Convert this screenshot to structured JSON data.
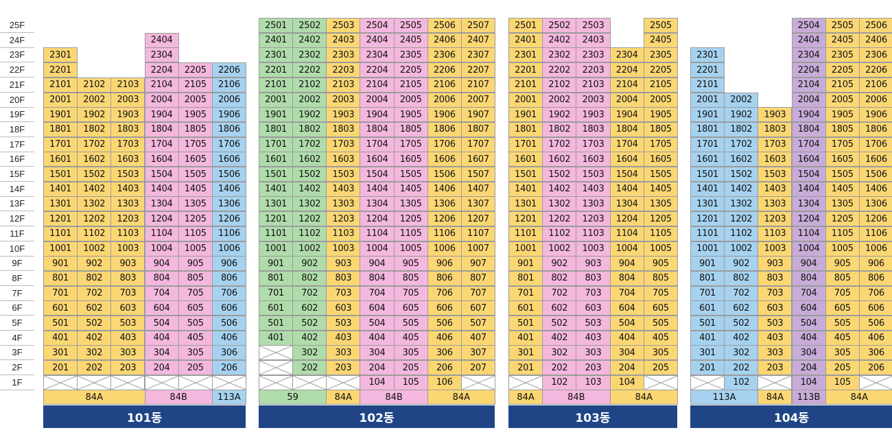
{
  "colors": {
    "84A": "#fbd774",
    "84B": "#f4b8de",
    "113A": "#a6d2ef",
    "59": "#b0dcab",
    "113B": "#c8acd8",
    "building_bar": "#1f4586"
  },
  "floors": [
    "25F",
    "24F",
    "23F",
    "22F",
    "21F",
    "20F",
    "19F",
    "18F",
    "17F",
    "16F",
    "15F",
    "14F",
    "13F",
    "12F",
    "11F",
    "10F",
    "9F",
    "8F",
    "7F",
    "6F",
    "5F",
    "4F",
    "3F",
    "2F",
    "1F"
  ],
  "buildings": [
    {
      "name": "101동",
      "columns": [
        {
          "col": 1,
          "type": "84A",
          "min": 2,
          "max": 23,
          "empty": [
            1
          ]
        },
        {
          "col": 2,
          "type": "84A",
          "min": 2,
          "max": 21,
          "empty": [
            1
          ]
        },
        {
          "col": 3,
          "type": "84A",
          "min": 2,
          "max": 21,
          "empty": [
            1
          ]
        },
        {
          "col": 4,
          "type": "84B",
          "min": 2,
          "max": 24,
          "empty": [
            1
          ]
        },
        {
          "col": 5,
          "type": "84B",
          "min": 2,
          "max": 22,
          "empty": [
            1
          ]
        },
        {
          "col": 6,
          "type": "113A",
          "min": 2,
          "max": 22,
          "empty": [
            1
          ]
        }
      ],
      "types": [
        {
          "label": "84A",
          "type": "84A",
          "span": 3
        },
        {
          "label": "84B",
          "type": "84B",
          "span": 2
        },
        {
          "label": "113A",
          "type": "113A",
          "span": 1
        }
      ]
    },
    {
      "name": "102동",
      "columns": [
        {
          "col": 1,
          "type": "59",
          "min": 4,
          "max": 25,
          "empty": [
            1,
            2,
            3
          ]
        },
        {
          "col": 2,
          "type": "59",
          "min": 2,
          "max": 25,
          "empty": [
            1
          ]
        },
        {
          "col": 3,
          "type": "84A",
          "min": 2,
          "max": 25,
          "empty": [
            1
          ]
        },
        {
          "col": 4,
          "type": "84B",
          "min": 1,
          "max": 25,
          "empty": []
        },
        {
          "col": 5,
          "type": "84B",
          "min": 1,
          "max": 25,
          "empty": []
        },
        {
          "col": 6,
          "type": "84A",
          "min": 1,
          "max": 25,
          "empty": []
        },
        {
          "col": 7,
          "type": "84A",
          "min": 2,
          "max": 25,
          "empty": [
            1
          ]
        }
      ],
      "types": [
        {
          "label": "59",
          "type": "59",
          "span": 2
        },
        {
          "label": "84A",
          "type": "84A",
          "span": 1
        },
        {
          "label": "84B",
          "type": "84B",
          "span": 2
        },
        {
          "label": "84A",
          "type": "84A",
          "span": 2
        }
      ]
    },
    {
      "name": "103동",
      "columns": [
        {
          "col": 1,
          "type": "84A",
          "min": 2,
          "max": 25,
          "empty": [
            1
          ]
        },
        {
          "col": 2,
          "type": "84B",
          "min": 1,
          "max": 25,
          "empty": []
        },
        {
          "col": 3,
          "type": "84B",
          "min": 1,
          "max": 25,
          "empty": []
        },
        {
          "col": 4,
          "type": "84A",
          "min": 1,
          "max": 23,
          "empty": []
        },
        {
          "col": 5,
          "type": "84A",
          "min": 2,
          "max": 25,
          "empty": [
            1
          ]
        }
      ],
      "types": [
        {
          "label": "84A",
          "type": "84A",
          "span": 1
        },
        {
          "label": "84B",
          "type": "84B",
          "span": 2
        },
        {
          "label": "84A",
          "type": "84A",
          "span": 2
        }
      ]
    },
    {
      "name": "104동",
      "columns": [
        {
          "col": 1,
          "type": "113A",
          "min": 2,
          "max": 23,
          "empty": [
            1
          ]
        },
        {
          "col": 2,
          "type": "113A",
          "min": 1,
          "max": 20,
          "empty": []
        },
        {
          "col": 3,
          "type": "84A",
          "min": 2,
          "max": 19,
          "empty": [
            1
          ]
        },
        {
          "col": 4,
          "type": "113B",
          "min": 1,
          "max": 25,
          "empty": []
        },
        {
          "col": 5,
          "type": "84A",
          "min": 1,
          "max": 25,
          "empty": []
        },
        {
          "col": 6,
          "type": "84A",
          "min": 2,
          "max": 25,
          "empty": [
            1
          ]
        }
      ],
      "types": [
        {
          "label": "113A",
          "type": "113A",
          "span": 2
        },
        {
          "label": "84A",
          "type": "84A",
          "span": 1
        },
        {
          "label": "113B",
          "type": "113B",
          "span": 1
        },
        {
          "label": "84A",
          "type": "84A",
          "span": 2
        }
      ]
    }
  ]
}
